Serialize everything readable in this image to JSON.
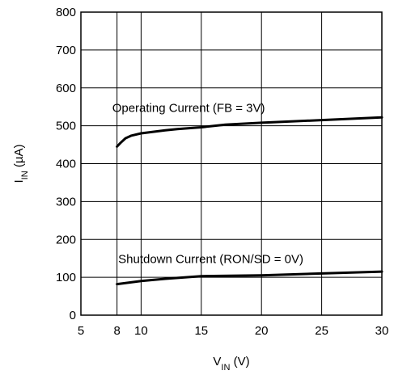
{
  "chart_data": {
    "type": "line",
    "xlabel": {
      "main": "V",
      "sub": "IN",
      "unit": " (V)"
    },
    "ylabel": {
      "main": "I",
      "sub": "IN",
      "unit": " (µA)"
    },
    "xlim": [
      5,
      30
    ],
    "ylim": [
      0,
      800
    ],
    "x_ticks": [
      5,
      8,
      10,
      15,
      20,
      25,
      30
    ],
    "y_ticks": [
      0,
      100,
      200,
      300,
      400,
      500,
      600,
      700,
      800
    ],
    "x_gridlines": [
      8,
      10,
      15,
      20,
      25
    ],
    "y_gridlines": [
      100,
      200,
      300,
      400,
      500,
      600,
      700
    ],
    "grid": true,
    "series": [
      {
        "id": "operating",
        "x": [
          8,
          8.3,
          8.7,
          9.2,
          10,
          11,
          12,
          13,
          15,
          17,
          20,
          25,
          30
        ],
        "y": [
          445,
          455,
          467,
          474,
          480,
          484,
          488,
          491,
          496,
          503,
          508,
          515,
          522
        ]
      },
      {
        "id": "shutdown",
        "x": [
          8,
          10,
          12,
          15,
          20,
          25,
          30
        ],
        "y": [
          82,
          90,
          96,
          103,
          105,
          110,
          115
        ]
      }
    ],
    "annotations": [
      {
        "series": "operating",
        "text": "Operating Current (FB = 3V)",
        "x": 7.6,
        "y": 537
      },
      {
        "series": "shutdown",
        "text": "Shutdown Current (RON/SD = 0V)",
        "x": 8.1,
        "y": 138
      }
    ]
  },
  "colors": {
    "axis": "#000000",
    "grid": "#000000",
    "line": "#000000",
    "background": "#ffffff"
  }
}
